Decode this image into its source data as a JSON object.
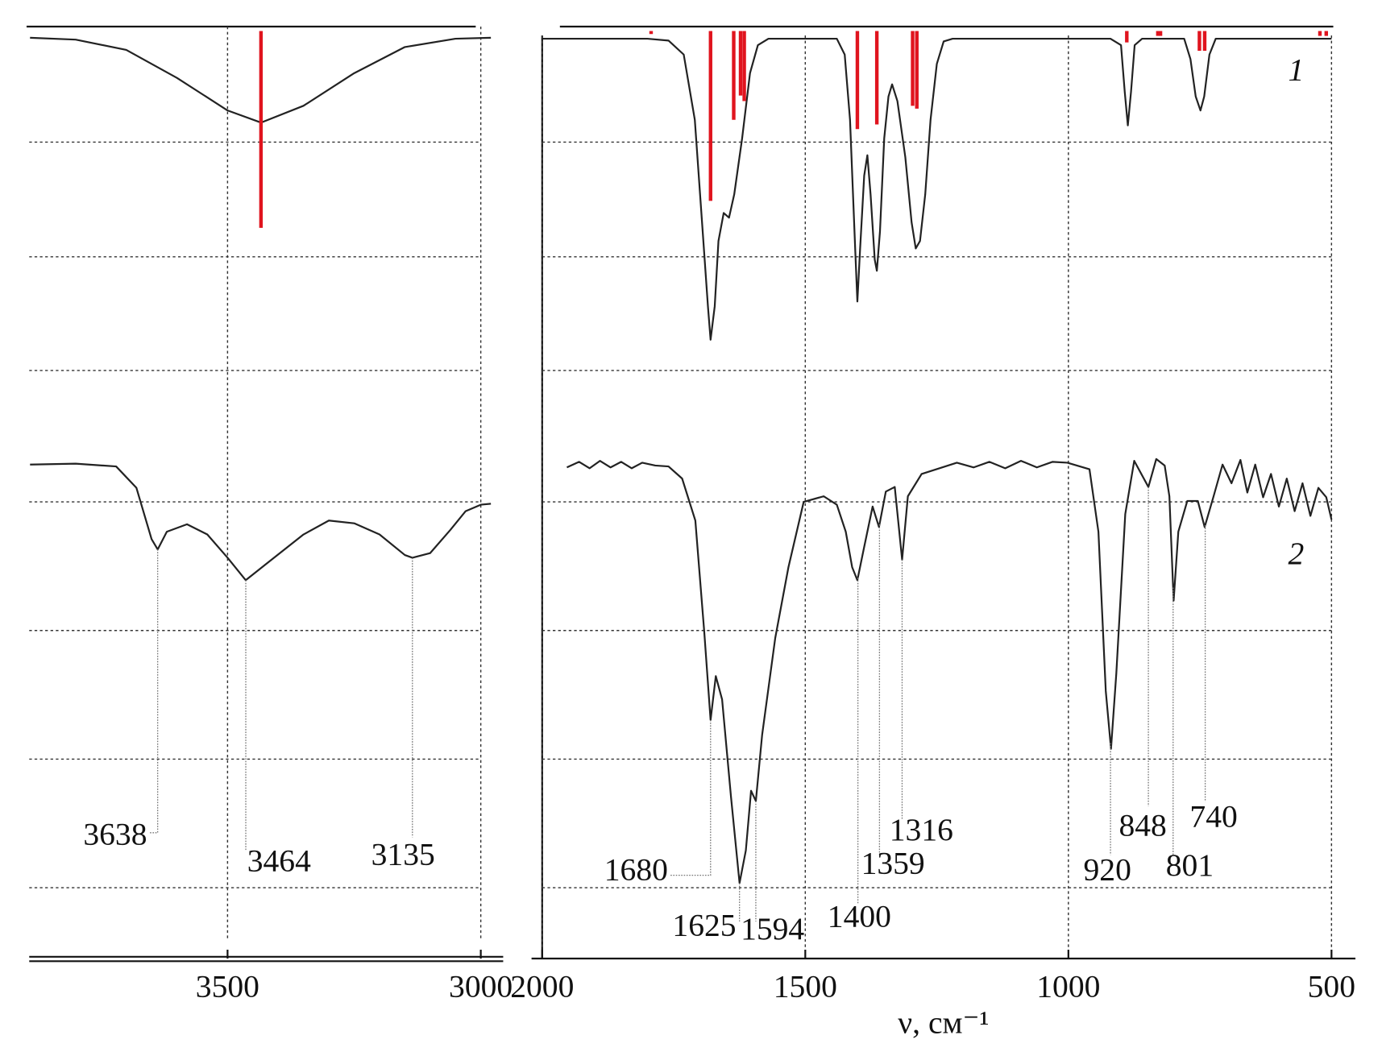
{
  "chart_data": [
    {
      "type": "line",
      "xlim": [
        3890,
        2975
      ],
      "xticks": [
        3500,
        3000
      ],
      "ylim": [
        0,
        100
      ],
      "yticks": [
        7.6,
        21.4,
        35.2,
        49,
        63.1,
        75.3,
        87.6
      ],
      "grid": true,
      "series": [
        {
          "color": "#222222",
          "x": [
            3890,
            3800,
            3700,
            3600,
            3500,
            3434,
            3350,
            3250,
            3150,
            3050,
            2980
          ],
          "values": [
            98.8,
            98.6,
            97.5,
            94.5,
            91,
            89.7,
            91.5,
            95,
            97.8,
            98.7,
            98.8
          ]
        },
        {
          "color": "#222222",
          "x": [
            3890,
            3800,
            3720,
            3680,
            3650,
            3638,
            3620,
            3580,
            3540,
            3500,
            3464,
            3420,
            3350,
            3300,
            3250,
            3200,
            3150,
            3135,
            3100,
            3060,
            3030,
            3000,
            2980
          ],
          "values": [
            53,
            53.1,
            52.8,
            50.5,
            45,
            43.9,
            45.8,
            46.6,
            45.5,
            43,
            40.6,
            42.5,
            45.5,
            47,
            46.7,
            45.5,
            43.3,
            43,
            43.5,
            46,
            48,
            48.7,
            48.8
          ]
        }
      ],
      "sticks": {
        "color": "#e0141e",
        "x": [
          3434
        ],
        "values": [
          78.4
        ]
      },
      "peaks": [
        3638,
        3464,
        3135
      ]
    },
    {
      "type": "line",
      "xlabel": "ν, см⁻¹",
      "xlim": [
        2000,
        500
      ],
      "xticks": [
        2000,
        1500,
        1000,
        500
      ],
      "ylim": [
        0,
        100
      ],
      "yticks": [
        7.6,
        21.4,
        35.2,
        49,
        63.1,
        75.3,
        87.6
      ],
      "grid": true,
      "series": [
        {
          "name": "1",
          "color": "#222222",
          "x": [
            2000,
            1800,
            1760,
            1731,
            1710,
            1695,
            1685,
            1680,
            1672,
            1665,
            1655,
            1645,
            1635,
            1620,
            1605,
            1590,
            1570,
            1440,
            1425,
            1415,
            1405,
            1401,
            1396,
            1388,
            1382,
            1376,
            1368,
            1364,
            1358,
            1350,
            1342,
            1335,
            1325,
            1310,
            1298,
            1290,
            1282,
            1272,
            1262,
            1250,
            1237,
            1220,
            920,
            900,
            893,
            887,
            881,
            874,
            860,
            780,
            768,
            758,
            749,
            742,
            732,
            720,
            500
          ],
          "values": [
            98.7,
            98.7,
            98.5,
            97,
            90,
            78,
            70,
            66.4,
            70,
            77,
            80,
            79.5,
            82,
            88,
            95,
            98,
            98.7,
            98.7,
            97,
            90,
            76,
            70.5,
            76,
            84,
            86.2,
            82,
            75,
            73.8,
            78,
            88,
            92.5,
            93.8,
            92,
            86,
            79,
            76.2,
            77,
            82,
            90,
            96,
            98.4,
            98.7,
            98.7,
            98,
            93,
            89.4,
            93,
            98,
            98.7,
            98.7,
            96.5,
            92.5,
            91,
            92.5,
            97,
            98.7,
            98.7
          ]
        },
        {
          "name": "2",
          "color": "#222222",
          "x": [
            1953,
            1930,
            1910,
            1890,
            1870,
            1850,
            1830,
            1810,
            1785,
            1760,
            1734,
            1709,
            1692,
            1680,
            1670,
            1658,
            1641,
            1625,
            1613,
            1603,
            1594,
            1582,
            1557,
            1532,
            1503,
            1465,
            1440,
            1423,
            1411,
            1401,
            1389,
            1372,
            1360,
            1347,
            1330,
            1316,
            1305,
            1279,
            1212,
            1180,
            1150,
            1120,
            1090,
            1060,
            1030,
            1002,
            960,
            943,
            929,
            919,
            909,
            892,
            875,
            848,
            833,
            817,
            808,
            800,
            791,
            774,
            754,
            741,
            724,
            707,
            690,
            673,
            660,
            645,
            630,
            615,
            600,
            585,
            570,
            555,
            540,
            525,
            510,
            500
          ],
          "values": [
            52.7,
            53.3,
            52.6,
            53.4,
            52.7,
            53.3,
            52.6,
            53.2,
            52.9,
            52.8,
            51.5,
            47,
            35,
            25.6,
            30.3,
            27.8,
            17.3,
            8.1,
            11.6,
            18,
            16.9,
            24,
            34.4,
            42,
            49,
            49.6,
            48.7,
            45.8,
            42,
            40.6,
            43.9,
            48.5,
            46.3,
            50.1,
            50.6,
            42.8,
            49.6,
            52,
            53.2,
            52.7,
            53.3,
            52.6,
            53.4,
            52.7,
            53.3,
            53.2,
            52.5,
            45.8,
            28.7,
            22.5,
            30.6,
            47.7,
            53.4,
            50.6,
            53.6,
            52.9,
            49.6,
            38.4,
            45.8,
            49.1,
            49.1,
            46.3,
            49.6,
            53,
            51,
            53.5,
            50,
            53,
            49.5,
            52,
            48.5,
            51.5,
            48,
            51,
            47.5,
            50.5,
            49.5,
            47.1
          ]
        }
      ],
      "sticks": {
        "color": "#e0141e",
        "x": [
          1793,
          1680,
          1636,
          1623,
          1616,
          1401,
          1364,
          1296,
          1288,
          889,
          830,
          825,
          751,
          741,
          522,
          510
        ],
        "values": [
          99.2,
          81.3,
          90,
          92.6,
          92,
          89,
          89.5,
          91.5,
          91.2,
          98.3,
          99,
          99,
          97.4,
          97.4,
          99,
          99
        ]
      },
      "peaks": [
        1680,
        1625,
        1594,
        1400,
        1359,
        1316,
        920,
        848,
        801,
        740
      ]
    }
  ]
}
